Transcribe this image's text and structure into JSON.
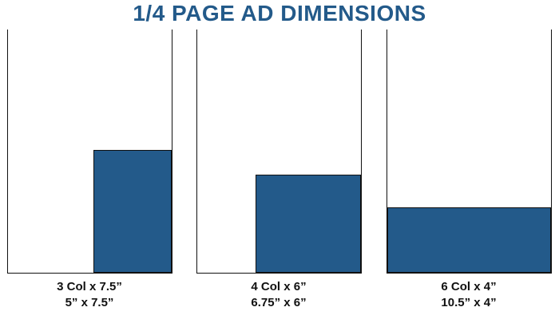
{
  "title": "1/4 PAGE AD DIMENSIONS",
  "colors": {
    "accent": "#235a8a",
    "outline": "#111111",
    "background": "#ffffff"
  },
  "ads": [
    {
      "columns_label": "3 Col x 7.5”",
      "inches_label": "5” x 7.5”",
      "width_in": 5,
      "height_in": 7.5
    },
    {
      "columns_label": "4 Col x 6”",
      "inches_label": "6.75” x 6”",
      "width_in": 6.75,
      "height_in": 6
    },
    {
      "columns_label": "6 Col x 4”",
      "inches_label": "10.5” x 4”",
      "width_in": 10.5,
      "height_in": 4
    }
  ]
}
